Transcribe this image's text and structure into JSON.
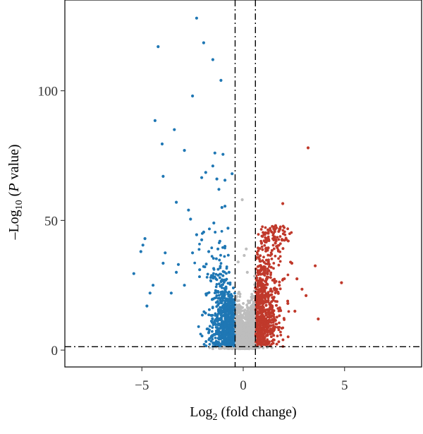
{
  "chart_data": {
    "type": "scatter",
    "title": "",
    "xlabel": {
      "prefix": "Log",
      "sub": "2",
      "suffix": " (fold change)"
    },
    "ylabel": {
      "prefix": "–Log",
      "sub": "10",
      "mid": " (",
      "italic": "P",
      "suffix": " value)"
    },
    "xlim": [
      -8.8,
      8.8
    ],
    "ylim": [
      -6.5,
      135
    ],
    "xticks": [
      -5,
      0,
      5
    ],
    "xtick_labels": [
      "−5",
      "0",
      "5"
    ],
    "yticks": [
      0,
      50,
      100
    ],
    "ytick_labels": [
      "0",
      "50",
      "100"
    ],
    "grid": false,
    "legend": "none",
    "thresholds": {
      "fold_change_low": -0.4,
      "fold_change_high": 0.6,
      "p_value_line": 1.3
    },
    "colors": {
      "down": "#1f77b4",
      "up": "#c0392b",
      "not_significant": "#bdbdbd",
      "threshold_line": "#000000",
      "frame": "#000000"
    },
    "series": [
      {
        "group": "down",
        "points": [
          [
            -2.3,
            128
          ],
          [
            -1.95,
            118.5
          ],
          [
            -4.2,
            117
          ],
          [
            -1.5,
            112
          ],
          [
            -1.1,
            104
          ],
          [
            -2.5,
            98
          ],
          [
            -4.35,
            88.5
          ],
          [
            -3.4,
            85
          ],
          [
            -4.0,
            79.5
          ],
          [
            -2.9,
            77
          ],
          [
            -1.4,
            76
          ],
          [
            -1.0,
            75.5
          ],
          [
            -1.5,
            71
          ],
          [
            -1.85,
            68.5
          ],
          [
            -0.55,
            68
          ],
          [
            -3.95,
            67
          ],
          [
            -2.05,
            66.5
          ],
          [
            -1.3,
            66
          ],
          [
            -0.9,
            65.5
          ],
          [
            -1.2,
            62
          ],
          [
            -3.3,
            57
          ],
          [
            -2.7,
            54
          ],
          [
            -0.9,
            55.5
          ],
          [
            -1.05,
            55
          ],
          [
            -2.6,
            50.5
          ],
          [
            -1.45,
            49
          ],
          [
            -1.95,
            45.5
          ],
          [
            -2.3,
            44.5
          ],
          [
            -0.75,
            47
          ],
          [
            -2.05,
            42.5
          ],
          [
            -4.85,
            43
          ],
          [
            -1.15,
            42
          ],
          [
            -4.95,
            40.5
          ],
          [
            -5.05,
            38
          ],
          [
            -3.85,
            37.5
          ],
          [
            -2.5,
            37.5
          ],
          [
            -1.7,
            38
          ],
          [
            -1.25,
            39
          ],
          [
            -0.9,
            40
          ],
          [
            -5.4,
            29.5
          ],
          [
            -3.95,
            33.5
          ],
          [
            -3.2,
            33
          ],
          [
            -2.15,
            31
          ],
          [
            -3.3,
            30
          ],
          [
            -4.45,
            25
          ],
          [
            -4.6,
            22
          ],
          [
            -4.75,
            17
          ],
          [
            -3.55,
            22
          ],
          [
            -2.9,
            25
          ],
          [
            -1.6,
            28
          ],
          [
            -0.7,
            30
          ]
        ]
      },
      {
        "group": "up",
        "points": [
          [
            3.2,
            78
          ],
          [
            1.95,
            56.5
          ],
          [
            3.55,
            32.5
          ],
          [
            4.85,
            26
          ],
          [
            3.7,
            12
          ],
          [
            2.9,
            23.5
          ],
          [
            2.65,
            27.5
          ],
          [
            2.4,
            33.5
          ],
          [
            2.2,
            18
          ],
          [
            2.55,
            15
          ],
          [
            3.1,
            21
          ],
          [
            1.6,
            48
          ]
        ]
      },
      {
        "group": "not_significant",
        "points": [
          [
            -0.05,
            58
          ],
          [
            0.05,
            36.5
          ],
          [
            -0.25,
            34
          ],
          [
            0.2,
            30
          ],
          [
            0.15,
            39
          ]
        ]
      }
    ]
  }
}
